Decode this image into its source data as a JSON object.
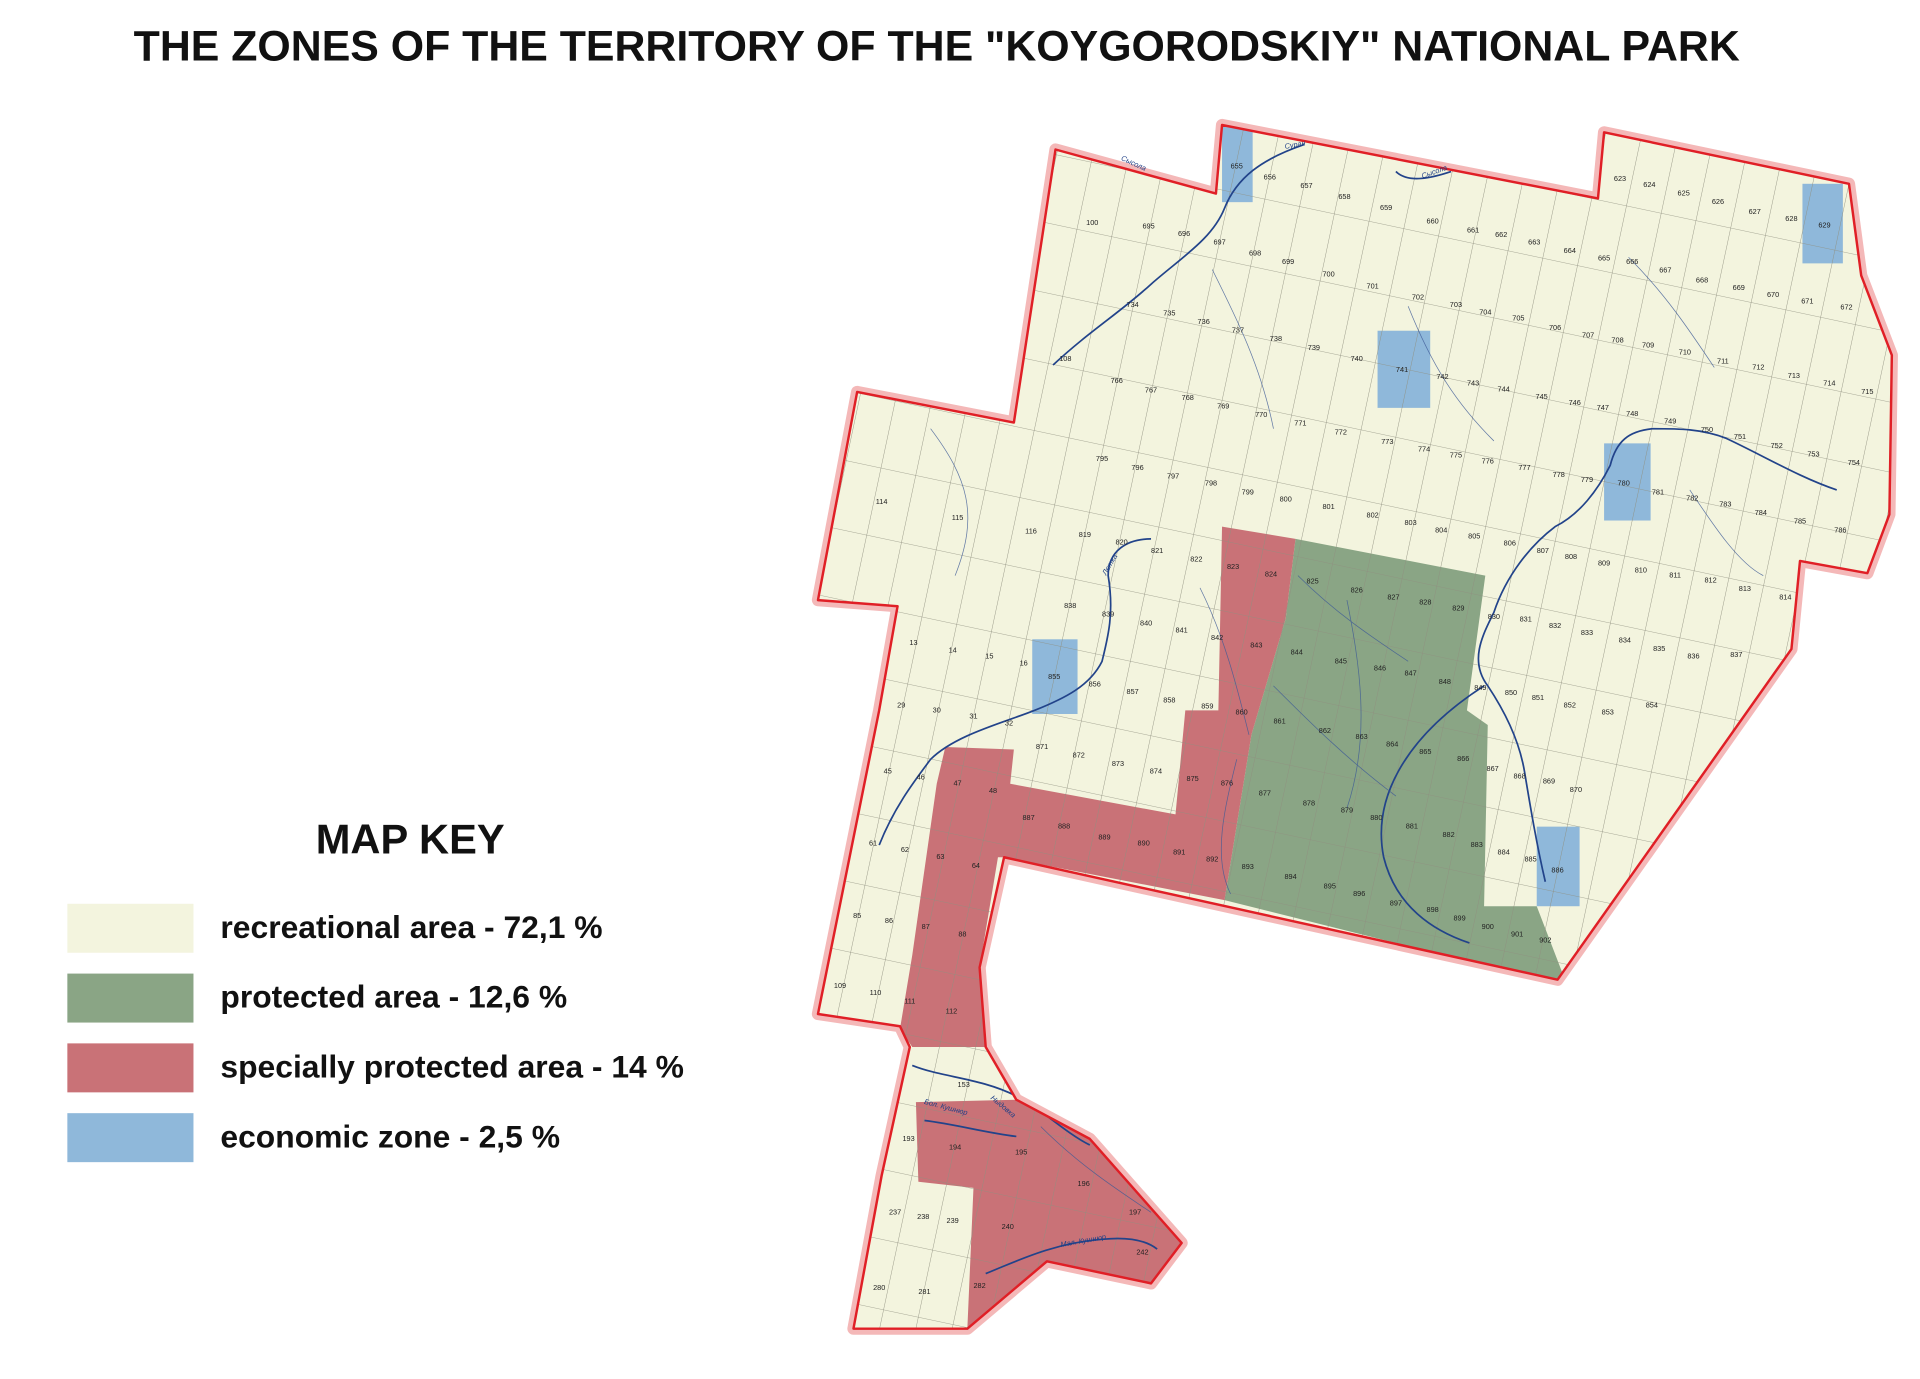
{
  "header": {
    "title": "THE ZONES OF THE  TERRITORY OF THE \"KOYGORODSKIY\" NATIONAL PARK"
  },
  "map_key": {
    "title": "MAP KEY",
    "items": [
      {
        "label": "recreational area - 72,1 %",
        "color": "#f3f4de"
      },
      {
        "label": "protected area - 12,6 %",
        "color": "#8aa585"
      },
      {
        "label": "specially protected area - 14 %",
        "color": "#c97277"
      },
      {
        "label": "economic zone - 2,5 %",
        "color": "#8fb8da"
      }
    ]
  },
  "rivers": [
    "Сысола",
    "Суран",
    "Сысола",
    "Летка",
    "Бол. Кушнюр",
    "Ныдовка",
    "Мал. Кушнюр"
  ],
  "blocks": [
    "100",
    "695",
    "696",
    "697",
    "698",
    "699",
    "700",
    "701",
    "702",
    "703",
    "704",
    "705",
    "706",
    "707",
    "708",
    "709",
    "710",
    "711",
    "712",
    "713",
    "714",
    "715",
    "656",
    "657",
    "658",
    "659",
    "660",
    "661",
    "662",
    "663",
    "664",
    "665",
    "666",
    "667",
    "668",
    "669",
    "670",
    "671",
    "672",
    "623",
    "624",
    "625",
    "626",
    "627",
    "628",
    "629",
    "655",
    "734",
    "735",
    "736",
    "737",
    "738",
    "739",
    "740",
    "741",
    "742",
    "743",
    "744",
    "745",
    "746",
    "747",
    "748",
    "749",
    "750",
    "751",
    "752",
    "753",
    "754",
    "108",
    "766",
    "767",
    "768",
    "769",
    "770",
    "771",
    "772",
    "773",
    "774",
    "775",
    "776",
    "777",
    "778",
    "779",
    "780",
    "781",
    "782",
    "783",
    "784",
    "785",
    "786",
    "114",
    "115",
    "116",
    "795",
    "796",
    "797",
    "798",
    "799",
    "800",
    "801",
    "802",
    "803",
    "804",
    "805",
    "806",
    "807",
    "808",
    "809",
    "810",
    "811",
    "812",
    "813",
    "814",
    "819",
    "820",
    "821",
    "822",
    "823",
    "824",
    "825",
    "826",
    "827",
    "828",
    "829",
    "830",
    "831",
    "832",
    "833",
    "834",
    "835",
    "836",
    "837",
    "838",
    "839",
    "840",
    "841",
    "842",
    "843",
    "844",
    "845",
    "846",
    "847",
    "848",
    "849",
    "850",
    "851",
    "852",
    "853",
    "854",
    "13",
    "14",
    "15",
    "16",
    "855",
    "856",
    "857",
    "858",
    "859",
    "860",
    "861",
    "862",
    "863",
    "864",
    "865",
    "866",
    "867",
    "868",
    "869",
    "870",
    "29",
    "30",
    "31",
    "32",
    "871",
    "872",
    "873",
    "874",
    "875",
    "876",
    "877",
    "878",
    "879",
    "880",
    "881",
    "882",
    "883",
    "884",
    "885",
    "886",
    "45",
    "46",
    "47",
    "48",
    "887",
    "888",
    "889",
    "890",
    "891",
    "892",
    "893",
    "894",
    "895",
    "896",
    "897",
    "898",
    "899",
    "900",
    "901",
    "902",
    "61",
    "62",
    "63",
    "64",
    "85",
    "86",
    "87",
    "88",
    "109",
    "110",
    "111",
    "112",
    "153",
    "193",
    "194",
    "195",
    "196",
    "197",
    "237",
    "238",
    "239",
    "240",
    "242",
    "280",
    "281",
    "282"
  ]
}
